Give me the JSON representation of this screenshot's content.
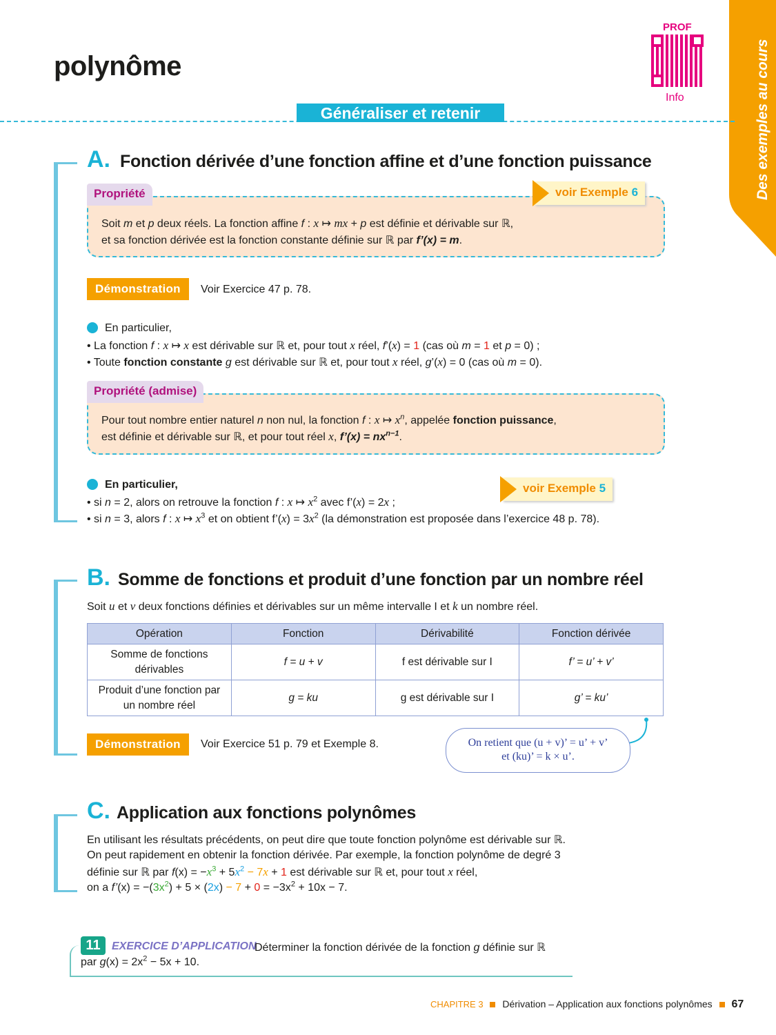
{
  "header": {
    "title": "polynôme",
    "qr_top": "PROF",
    "qr_bottom": "Info",
    "banner": "Généraliser et retenir",
    "side_tab": "Des exemples au cours"
  },
  "colors": {
    "cyan": "#1ab3d6",
    "orange": "#f5a000",
    "magenta": "#e6007e",
    "red": "#e2231a",
    "green": "#3aaa35",
    "blue": "#1aa0e0"
  },
  "secA": {
    "letter": "A.",
    "title": "Fonction dérivée d’une fonction affine et d’une fonction puissance",
    "prop1": {
      "tab": "Propriété",
      "voir": "voir Exemple ",
      "voir_num": "6",
      "lines": [
        [
          {
            "t": "Soit "
          },
          {
            "t": "m",
            "s": "i"
          },
          {
            "t": " et "
          },
          {
            "t": "p",
            "s": "i"
          },
          {
            "t": " deux réels. La fonction affine "
          },
          {
            "t": "f",
            "s": "i"
          },
          {
            "t": " : "
          },
          {
            "t": "x",
            "s": "m"
          },
          {
            "t": " ↦ "
          },
          {
            "t": "mx",
            "s": "m"
          },
          {
            "t": " + "
          },
          {
            "t": "p",
            "s": "i"
          },
          {
            "t": " est définie et dérivable sur ℝ,"
          }
        ],
        [
          {
            "t": "et sa fonction dérivée est la fonction constante définie sur ℝ par "
          },
          {
            "t": "f’(x) = m",
            "s": "b i"
          },
          {
            "t": "."
          }
        ]
      ]
    },
    "demo1": {
      "label": "Démonstration",
      "text": "Voir Exercice 47 p. 78."
    },
    "part1": {
      "head": "En particulier,",
      "lines": [
        [
          {
            "t": "• La fonction "
          },
          {
            "t": "f",
            "s": "i"
          },
          {
            "t": " : "
          },
          {
            "t": "x",
            "s": "m"
          },
          {
            "t": " ↦ "
          },
          {
            "t": "x",
            "s": "m"
          },
          {
            "t": " est dérivable sur ℝ et, pour tout "
          },
          {
            "t": "x",
            "s": "m"
          },
          {
            "t": " réel, "
          },
          {
            "t": "f",
            "s": "i"
          },
          {
            "t": "’("
          },
          {
            "t": "x",
            "s": "m"
          },
          {
            "t": ") = "
          },
          {
            "t": "1",
            "c": "#e2231a"
          },
          {
            "t": " (cas où "
          },
          {
            "t": "m",
            "s": "i"
          },
          {
            "t": " = "
          },
          {
            "t": "1",
            "c": "#e2231a"
          },
          {
            "t": " et "
          },
          {
            "t": "p",
            "s": "i"
          },
          {
            "t": " = 0) ;"
          }
        ],
        [
          {
            "t": "• Toute "
          },
          {
            "t": "fonction constante",
            "s": "b"
          },
          {
            "t": " "
          },
          {
            "t": "g",
            "s": "i"
          },
          {
            "t": " est dérivable sur ℝ et, pour tout "
          },
          {
            "t": "x",
            "s": "m"
          },
          {
            "t": " réel, "
          },
          {
            "t": "g",
            "s": "i"
          },
          {
            "t": "’("
          },
          {
            "t": "x",
            "s": "m"
          },
          {
            "t": ") = 0 (cas où "
          },
          {
            "t": "m",
            "s": "i"
          },
          {
            "t": " = 0)."
          }
        ]
      ]
    },
    "prop2": {
      "tab": "Propriété (admise)",
      "lines": [
        [
          {
            "t": "Pour tout nombre entier naturel "
          },
          {
            "t": "n",
            "s": "i"
          },
          {
            "t": " non nul, la fonction "
          },
          {
            "t": "f",
            "s": "i"
          },
          {
            "t": " : "
          },
          {
            "t": "x",
            "s": "m"
          },
          {
            "t": " ↦ "
          },
          {
            "t": "x",
            "s": "m"
          },
          {
            "t": "n",
            "s": "i sup"
          },
          {
            "t": ", appelée "
          },
          {
            "t": "fonction puissance",
            "s": "b"
          },
          {
            "t": ","
          }
        ],
        [
          {
            "t": "est définie et dérivable sur ℝ, et pour tout réel "
          },
          {
            "t": "x",
            "s": "m"
          },
          {
            "t": ", "
          },
          {
            "t": "f’(x) = nx",
            "s": "b i"
          },
          {
            "t": "n−1",
            "s": "b i sup"
          },
          {
            "t": "."
          }
        ]
      ]
    },
    "part2": {
      "head": "En particulier,",
      "voir": "voir Exemple ",
      "voir_num": "5",
      "lines": [
        [
          {
            "t": "• si "
          },
          {
            "t": "n",
            "s": "i"
          },
          {
            "t": " = 2, alors on retrouve la fonction "
          },
          {
            "t": "f",
            "s": "i"
          },
          {
            "t": " : "
          },
          {
            "t": "x",
            "s": "m"
          },
          {
            "t": " ↦ "
          },
          {
            "t": "x",
            "s": "m"
          },
          {
            "t": "2",
            "s": "sup"
          },
          {
            "t": " avec f’("
          },
          {
            "t": "x",
            "s": "m"
          },
          {
            "t": ") = 2"
          },
          {
            "t": "x",
            "s": "m"
          },
          {
            "t": " ;"
          }
        ],
        [
          {
            "t": "• si "
          },
          {
            "t": "n",
            "s": "i"
          },
          {
            "t": " = 3, alors "
          },
          {
            "t": "f",
            "s": "i"
          },
          {
            "t": " : "
          },
          {
            "t": "x",
            "s": "m"
          },
          {
            "t": " ↦ "
          },
          {
            "t": "x",
            "s": "m"
          },
          {
            "t": "3",
            "s": "sup"
          },
          {
            "t": " et on obtient f’("
          },
          {
            "t": "x",
            "s": "m"
          },
          {
            "t": ") = 3"
          },
          {
            "t": "x",
            "s": "m"
          },
          {
            "t": "2",
            "s": "sup"
          },
          {
            "t": " (la démonstration est proposée dans l’exercice 48 p. 78)."
          }
        ]
      ]
    }
  },
  "secB": {
    "letter": "B.",
    "title": "Somme de fonctions et produit d’une fonction par un nombre réel",
    "intro": [
      {
        "t": "Soit "
      },
      {
        "t": "u",
        "s": "m"
      },
      {
        "t": " et "
      },
      {
        "t": "v",
        "s": "m"
      },
      {
        "t": " deux fonctions définies et dérivables sur un même intervalle I et "
      },
      {
        "t": "k",
        "s": "m"
      },
      {
        "t": " un nombre réel."
      }
    ],
    "table": {
      "headers": [
        "Opération",
        "Fonction",
        "Dérivabilité",
        "Fonction dérivée"
      ],
      "rows": [
        [
          "Somme de fonctions dérivables",
          "f = u + v",
          "f est dérivable sur I",
          "f’ = u’ + v’"
        ],
        [
          "Produit d’une fonction par un nombre réel",
          "g = ku",
          "g est dérivable sur I",
          "g’ = ku’"
        ]
      ]
    },
    "demo": {
      "label": "Démonstration",
      "text": "Voir Exercice 51 p. 79 et Exemple 8."
    },
    "callout": {
      "line1": "On retient que (u + v)’ = u’ + v’",
      "line2": "et (ku)’ = k × u’."
    }
  },
  "secC": {
    "letter": "C.",
    "title": "Application aux fonctions polynômes",
    "lines": [
      [
        {
          "t": "En utilisant les résultats précédents, on peut dire que toute fonction polynôme est dérivable sur ℝ."
        }
      ],
      [
        {
          "t": "On peut rapidement en obtenir la fonction dérivée. Par exemple, la fonction polynôme de degré 3"
        }
      ],
      [
        {
          "t": "définie sur ℝ par "
        },
        {
          "t": "f",
          "s": "i"
        },
        {
          "t": "(x) = −"
        },
        {
          "t": "x",
          "s": "m",
          "c": "#3aaa35"
        },
        {
          "t": "3",
          "s": "sup",
          "c": "#3aaa35"
        },
        {
          "t": " + 5"
        },
        {
          "t": "x",
          "s": "m",
          "c": "#1aa0e0"
        },
        {
          "t": "2",
          "s": "sup",
          "c": "#1aa0e0"
        },
        {
          "t": " − 7",
          "c": "#f5a000"
        },
        {
          "t": "x",
          "s": "m",
          "c": "#f5a000"
        },
        {
          "t": " + "
        },
        {
          "t": "1",
          "c": "#e2231a"
        },
        {
          "t": " est dérivable sur ℝ et, pour tout "
        },
        {
          "t": "x",
          "s": "m"
        },
        {
          "t": " réel,"
        }
      ],
      [
        {
          "t": "on a "
        },
        {
          "t": "f’",
          "s": "i"
        },
        {
          "t": "(x) = −("
        },
        {
          "t": "3x",
          "c": "#3aaa35"
        },
        {
          "t": "2",
          "s": "sup",
          "c": "#3aaa35"
        },
        {
          "t": ") + 5 × ("
        },
        {
          "t": "2x",
          "c": "#1aa0e0"
        },
        {
          "t": ") "
        },
        {
          "t": "− 7",
          "c": "#f5a000"
        },
        {
          "t": " + "
        },
        {
          "t": "0",
          "c": "#e2231a"
        },
        {
          "t": " = −3x"
        },
        {
          "t": "2",
          "s": "sup"
        },
        {
          "t": " + 10x − 7."
        }
      ]
    ]
  },
  "exercise": {
    "number": "11",
    "label": "EXERCICE D’APPLICATION",
    "lines": [
      [
        {
          "t": "Déterminer la fonction dérivée de la fonction "
        },
        {
          "t": "g",
          "s": "i"
        },
        {
          "t": " définie sur ℝ"
        }
      ],
      [
        {
          "t": "par "
        },
        {
          "t": "g",
          "s": "i"
        },
        {
          "t": "(x) = 2x"
        },
        {
          "t": "2",
          "s": "sup"
        },
        {
          "t": " − 5x + 10."
        }
      ]
    ]
  },
  "footer": {
    "chapter": "CHAPITRE 3",
    "text": "Dérivation – Application aux fonctions polynômes",
    "page": "67"
  }
}
